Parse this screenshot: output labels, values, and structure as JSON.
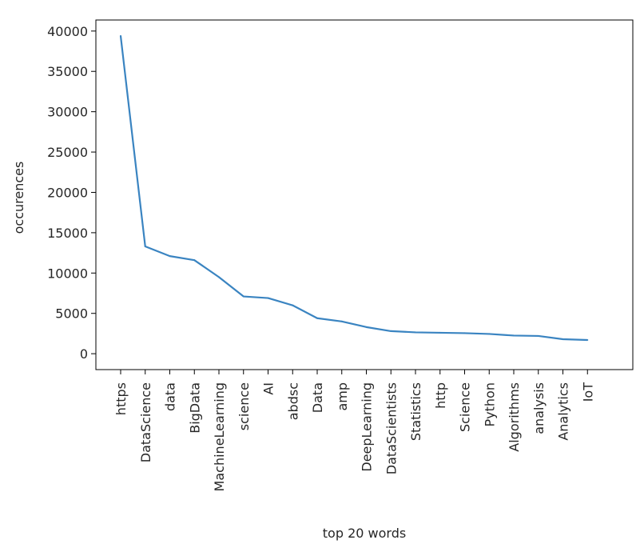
{
  "chart_data": {
    "type": "line",
    "categories": [
      "https",
      "DataScience",
      "data",
      "BigData",
      "MachineLearning",
      "science",
      "AI",
      "abdsc",
      "Data",
      "amp",
      "DeepLearning",
      "DataScientists",
      "Statistics",
      "http",
      "Science",
      "Python",
      "Algorithms",
      "analysis",
      "Analytics",
      "IoT"
    ],
    "series": [
      {
        "values": [
          39400,
          13300,
          12100,
          11600,
          9500,
          7100,
          6900,
          6000,
          4400,
          4000,
          3300,
          2800,
          2650,
          2600,
          2550,
          2450,
          2250,
          2200,
          1800,
          1700
        ]
      }
    ],
    "xlabel": "top 20 words",
    "ylabel": "occurences",
    "ylim": [
      -1970,
      41370
    ],
    "yticks": [
      0,
      5000,
      10000,
      15000,
      20000,
      25000,
      30000,
      35000,
      40000
    ],
    "grid": false,
    "line_color": "#3a84c1"
  }
}
